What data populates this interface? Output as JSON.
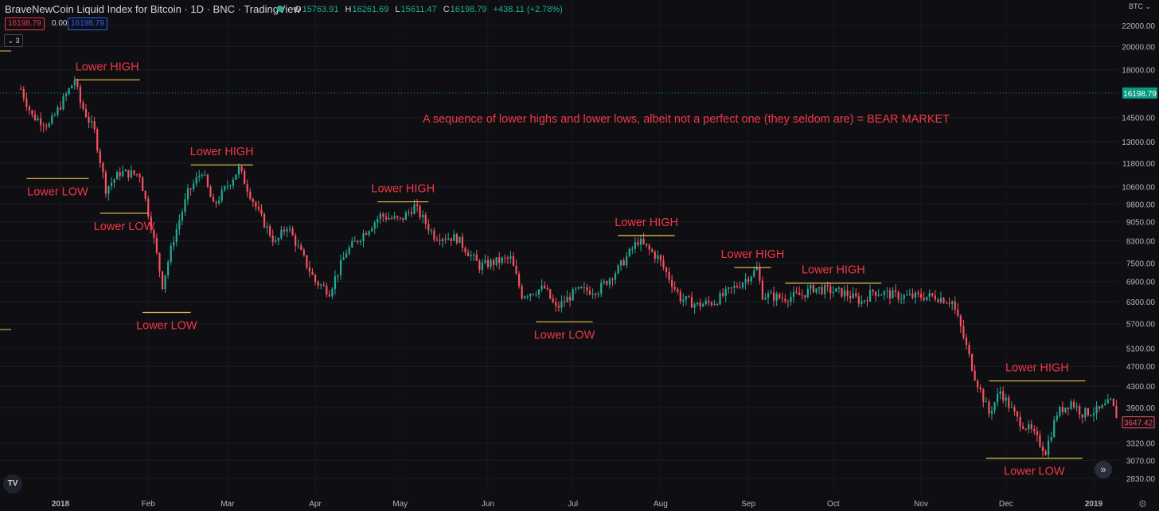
{
  "header": {
    "title": "BraveNewCoin Liquid Index for Bitcoin · 1D · BNC · TradingView",
    "ohlc": {
      "o_label": "O",
      "o": "15763.91",
      "h_label": "H",
      "h": "16261.69",
      "l_label": "L",
      "l": "15611.47",
      "c_label": "C",
      "c": "16198.79",
      "change": "+438.11 (+2.78%)"
    },
    "price_boxes": [
      "16198.79",
      "0.00",
      "16198.79"
    ],
    "collapse_label": "3",
    "currency": "BTC"
  },
  "colors": {
    "background": "#0f0f13",
    "up": "#22ab94",
    "down": "#f7525f",
    "annotation_text": "#f23645",
    "level_line": "#e8c547",
    "last_price": "#089981"
  },
  "chart_data": {
    "type": "candlestick",
    "y_scale": "log",
    "y_ticks": [
      22000,
      20000,
      18000,
      14500,
      13000,
      11800,
      10600,
      9800,
      9050,
      8300,
      7500,
      6900,
      6300,
      5700,
      5100,
      4700,
      4300,
      3900,
      3320,
      3070,
      2830
    ],
    "y_tick_labels": [
      "22000.00",
      "20000.00",
      "18000.00",
      "14500.00",
      "13000.00",
      "11800.00",
      "10600.00",
      "9800.00",
      "9050.00",
      "8300.00",
      "7500.00",
      "6900.00",
      "6300.00",
      "5700.00",
      "5100.00",
      "4700.00",
      "4300.00",
      "3900.00",
      "3320.00",
      "3070.00",
      "2830.00"
    ],
    "x_tick_labels": [
      "2018",
      "Feb",
      "Mar",
      "Apr",
      "May",
      "Jun",
      "Jul",
      "Aug",
      "Sep",
      "Oct",
      "Nov",
      "Dec",
      "2019"
    ],
    "price_labels": {
      "last": "16198.79",
      "current": "3647.42"
    },
    "price_path": [
      {
        "date": "2017-12-18",
        "price": 16500
      },
      {
        "date": "2017-12-22",
        "price": 14600
      },
      {
        "date": "2017-12-28",
        "price": 14000
      },
      {
        "date": "2018-01-06",
        "price": 17200
      },
      {
        "date": "2018-01-08",
        "price": 15500
      },
      {
        "date": "2018-01-13",
        "price": 13600
      },
      {
        "date": "2018-01-17",
        "price": 10500
      },
      {
        "date": "2018-01-22",
        "price": 11300
      },
      {
        "date": "2018-01-29",
        "price": 11200
      },
      {
        "date": "2018-02-02",
        "price": 8900
      },
      {
        "date": "2018-02-06",
        "price": 6800
      },
      {
        "date": "2018-02-10",
        "price": 8400
      },
      {
        "date": "2018-02-15",
        "price": 10300
      },
      {
        "date": "2018-02-20",
        "price": 11400
      },
      {
        "date": "2018-02-24",
        "price": 9700
      },
      {
        "date": "2018-03-05",
        "price": 11500
      },
      {
        "date": "2018-03-12",
        "price": 9400
      },
      {
        "date": "2018-03-18",
        "price": 8200
      },
      {
        "date": "2018-03-22",
        "price": 8900
      },
      {
        "date": "2018-04-01",
        "price": 6900
      },
      {
        "date": "2018-04-06",
        "price": 6600
      },
      {
        "date": "2018-04-12",
        "price": 7900
      },
      {
        "date": "2018-04-24",
        "price": 9300
      },
      {
        "date": "2018-05-01",
        "price": 9100
      },
      {
        "date": "2018-05-06",
        "price": 9700
      },
      {
        "date": "2018-05-13",
        "price": 8500
      },
      {
        "date": "2018-05-21",
        "price": 8400
      },
      {
        "date": "2018-05-29",
        "price": 7400
      },
      {
        "date": "2018-06-06",
        "price": 7600
      },
      {
        "date": "2018-06-09",
        "price": 7650
      },
      {
        "date": "2018-06-13",
        "price": 6500
      },
      {
        "date": "2018-06-21",
        "price": 6700
      },
      {
        "date": "2018-06-25",
        "price": 6100
      },
      {
        "date": "2018-07-02",
        "price": 6600
      },
      {
        "date": "2018-07-10",
        "price": 6650
      },
      {
        "date": "2018-07-17",
        "price": 7300
      },
      {
        "date": "2018-07-24",
        "price": 8300
      },
      {
        "date": "2018-07-31",
        "price": 7700
      },
      {
        "date": "2018-08-08",
        "price": 6400
      },
      {
        "date": "2018-08-14",
        "price": 6200
      },
      {
        "date": "2018-08-20",
        "price": 6300
      },
      {
        "date": "2018-08-30",
        "price": 6900
      },
      {
        "date": "2018-09-04",
        "price": 7300
      },
      {
        "date": "2018-09-06",
        "price": 6500
      },
      {
        "date": "2018-09-13",
        "price": 6400
      },
      {
        "date": "2018-09-20",
        "price": 6500
      },
      {
        "date": "2018-09-24",
        "price": 6700
      },
      {
        "date": "2018-10-05",
        "price": 6550
      },
      {
        "date": "2018-10-11",
        "price": 6300
      },
      {
        "date": "2018-10-15",
        "price": 6600
      },
      {
        "date": "2018-10-25",
        "price": 6450
      },
      {
        "date": "2018-11-06",
        "price": 6450
      },
      {
        "date": "2018-11-12",
        "price": 6300
      },
      {
        "date": "2018-11-15",
        "price": 5600
      },
      {
        "date": "2018-11-20",
        "price": 4500
      },
      {
        "date": "2018-11-25",
        "price": 3800
      },
      {
        "date": "2018-11-29",
        "price": 4200
      },
      {
        "date": "2018-12-05",
        "price": 3700
      },
      {
        "date": "2018-12-10",
        "price": 3500
      },
      {
        "date": "2018-12-15",
        "price": 3200
      },
      {
        "date": "2018-12-19",
        "price": 3800
      },
      {
        "date": "2018-12-24",
        "price": 4000
      },
      {
        "date": "2018-12-28",
        "price": 3800
      },
      {
        "date": "2019-01-03",
        "price": 3850
      },
      {
        "date": "2019-01-07",
        "price": 4000
      },
      {
        "date": "2019-01-10",
        "price": 3650
      }
    ],
    "levels": [
      {
        "date_start": "2017-12-20",
        "date_end": "2018-01-11",
        "price": 11000,
        "label": "Lower LOW"
      },
      {
        "date_start": "2018-01-06",
        "date_end": "2018-01-29",
        "price": 17200,
        "label": "Lower HIGH"
      },
      {
        "date_start": "2018-01-15",
        "date_end": "2018-02-01",
        "price": 9400,
        "label": "Lower LOW"
      },
      {
        "date_start": "2018-01-30",
        "date_end": "2018-02-16",
        "price": 6000,
        "label": "Lower LOW"
      },
      {
        "date_start": "2018-02-16",
        "date_end": "2018-03-10",
        "price": 11700,
        "label": "Lower HIGH"
      },
      {
        "date_start": "2018-04-23",
        "date_end": "2018-05-11",
        "price": 9900,
        "label": "Lower HIGH"
      },
      {
        "date_start": "2018-06-18",
        "date_end": "2018-07-08",
        "price": 5750,
        "label": "Lower LOW"
      },
      {
        "date_start": "2018-07-17",
        "date_end": "2018-08-06",
        "price": 8500,
        "label": "Lower HIGH"
      },
      {
        "date_start": "2018-08-27",
        "date_end": "2018-09-09",
        "price": 7350,
        "label": "Lower HIGH"
      },
      {
        "date_start": "2018-09-14",
        "date_end": "2018-10-18",
        "price": 6850,
        "label": "Lower HIGH"
      },
      {
        "date_start": "2018-11-25",
        "date_end": "2018-12-29",
        "price": 4400,
        "label": "Lower HIGH"
      },
      {
        "date_start": "2018-11-24",
        "date_end": "2018-12-28",
        "price": 3100,
        "label": "Lower LOW"
      }
    ],
    "annotation": "A sequence of lower highs and lower lows, albeit not a perfect one (they seldom are) = BEAR MARKET"
  }
}
